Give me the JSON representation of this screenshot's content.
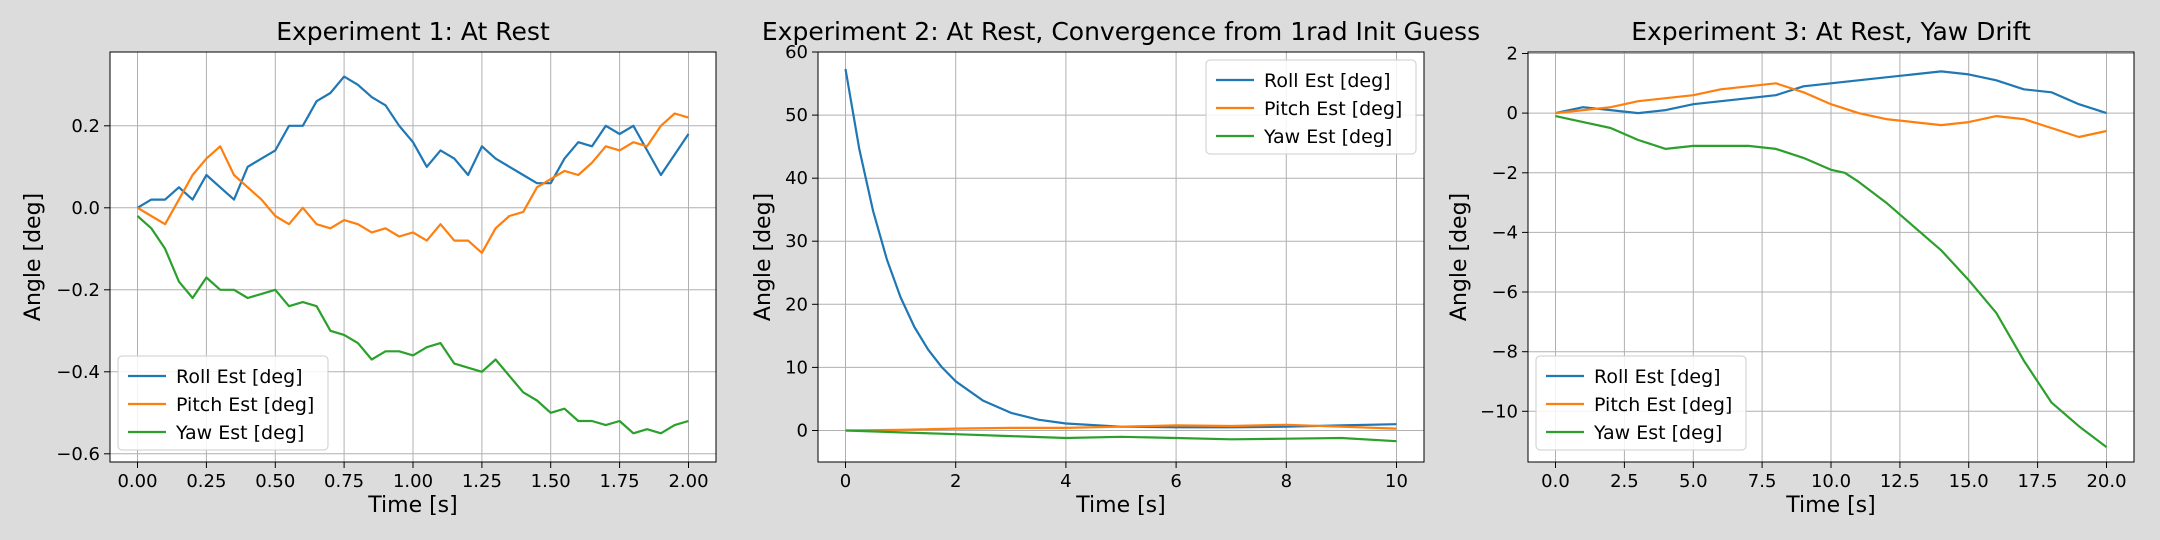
{
  "figure": {
    "background": "#dcdcdc"
  },
  "series_colors": {
    "Roll Est [deg]": "#1f77b4",
    "Pitch Est [deg]": "#ff7f0e",
    "Yaw Est [deg]": "#2ca02c"
  },
  "chart_data": [
    {
      "type": "line",
      "title": "Experiment 1: At Rest",
      "xlabel": "Time [s]",
      "ylabel": "Angle [deg]",
      "xlim": [
        -0.1,
        2.1
      ],
      "ylim": [
        -0.62,
        0.38
      ],
      "xticks": [
        0.0,
        0.25,
        0.5,
        0.75,
        1.0,
        1.25,
        1.5,
        1.75,
        2.0
      ],
      "xtick_labels": [
        "0.00",
        "0.25",
        "0.50",
        "0.75",
        "1.00",
        "1.25",
        "1.50",
        "1.75",
        "2.00"
      ],
      "yticks": [
        -0.6,
        -0.4,
        -0.2,
        0.0,
        0.2
      ],
      "ytick_labels": [
        "−0.6",
        "−0.4",
        "−0.2",
        "0.0",
        "0.2"
      ],
      "grid": true,
      "legend": "lower-left",
      "series": [
        {
          "name": "Roll Est [deg]",
          "color": "#1f77b4",
          "x": [
            0.0,
            0.05,
            0.1,
            0.15,
            0.2,
            0.25,
            0.3,
            0.35,
            0.4,
            0.45,
            0.5,
            0.55,
            0.6,
            0.65,
            0.7,
            0.75,
            0.8,
            0.85,
            0.9,
            0.95,
            1.0,
            1.05,
            1.1,
            1.15,
            1.2,
            1.25,
            1.3,
            1.35,
            1.4,
            1.45,
            1.5,
            1.55,
            1.6,
            1.65,
            1.7,
            1.75,
            1.8,
            1.85,
            1.9,
            1.95,
            2.0
          ],
          "y": [
            0.0,
            0.02,
            0.02,
            0.05,
            0.02,
            0.08,
            0.05,
            0.02,
            0.1,
            0.12,
            0.14,
            0.2,
            0.2,
            0.26,
            0.28,
            0.32,
            0.3,
            0.27,
            0.25,
            0.2,
            0.16,
            0.1,
            0.14,
            0.12,
            0.08,
            0.15,
            0.12,
            0.1,
            0.08,
            0.06,
            0.06,
            0.12,
            0.16,
            0.15,
            0.2,
            0.18,
            0.2,
            0.14,
            0.08,
            0.13,
            0.18
          ]
        },
        {
          "name": "Pitch Est [deg]",
          "color": "#ff7f0e",
          "x": [
            0.0,
            0.05,
            0.1,
            0.15,
            0.2,
            0.25,
            0.3,
            0.35,
            0.4,
            0.45,
            0.5,
            0.55,
            0.6,
            0.65,
            0.7,
            0.75,
            0.8,
            0.85,
            0.9,
            0.95,
            1.0,
            1.05,
            1.1,
            1.15,
            1.2,
            1.25,
            1.3,
            1.35,
            1.4,
            1.45,
            1.5,
            1.55,
            1.6,
            1.65,
            1.7,
            1.75,
            1.8,
            1.85,
            1.9,
            1.95,
            2.0
          ],
          "y": [
            0.0,
            -0.02,
            -0.04,
            0.02,
            0.08,
            0.12,
            0.15,
            0.08,
            0.05,
            0.02,
            -0.02,
            -0.04,
            0.0,
            -0.04,
            -0.05,
            -0.03,
            -0.04,
            -0.06,
            -0.05,
            -0.07,
            -0.06,
            -0.08,
            -0.04,
            -0.08,
            -0.08,
            -0.11,
            -0.05,
            -0.02,
            -0.01,
            0.05,
            0.07,
            0.09,
            0.08,
            0.11,
            0.15,
            0.14,
            0.16,
            0.15,
            0.2,
            0.23,
            0.22
          ]
        },
        {
          "name": "Yaw Est [deg]",
          "color": "#2ca02c",
          "x": [
            0.0,
            0.05,
            0.1,
            0.15,
            0.2,
            0.25,
            0.3,
            0.35,
            0.4,
            0.45,
            0.5,
            0.55,
            0.6,
            0.65,
            0.7,
            0.75,
            0.8,
            0.85,
            0.9,
            0.95,
            1.0,
            1.05,
            1.1,
            1.15,
            1.2,
            1.25,
            1.3,
            1.35,
            1.4,
            1.45,
            1.5,
            1.55,
            1.6,
            1.65,
            1.7,
            1.75,
            1.8,
            1.85,
            1.9,
            1.95,
            2.0
          ],
          "y": [
            -0.02,
            -0.05,
            -0.1,
            -0.18,
            -0.22,
            -0.17,
            -0.2,
            -0.2,
            -0.22,
            -0.21,
            -0.2,
            -0.24,
            -0.23,
            -0.24,
            -0.3,
            -0.31,
            -0.33,
            -0.37,
            -0.35,
            -0.35,
            -0.36,
            -0.34,
            -0.33,
            -0.38,
            -0.39,
            -0.4,
            -0.37,
            -0.41,
            -0.45,
            -0.47,
            -0.5,
            -0.49,
            -0.52,
            -0.52,
            -0.53,
            -0.52,
            -0.55,
            -0.54,
            -0.55,
            -0.53,
            -0.52
          ]
        }
      ]
    },
    {
      "type": "line",
      "title": "Experiment 2: At Rest, Convergence from 1rad Init Guess",
      "xlabel": "Time [s]",
      "ylabel": "Angle [deg]",
      "xlim": [
        -0.5,
        10.5
      ],
      "ylim": [
        -5,
        60
      ],
      "xticks": [
        0,
        2,
        4,
        6,
        8,
        10
      ],
      "xtick_labels": [
        "0",
        "2",
        "4",
        "6",
        "8",
        "10"
      ],
      "yticks": [
        0,
        10,
        20,
        30,
        40,
        50,
        60
      ],
      "ytick_labels": [
        "0",
        "10",
        "20",
        "30",
        "40",
        "50",
        "60"
      ],
      "grid": true,
      "legend": "top-right",
      "series": [
        {
          "name": "Roll Est [deg]",
          "color": "#1f77b4",
          "x": [
            0,
            0.25,
            0.5,
            0.75,
            1.0,
            1.25,
            1.5,
            1.75,
            2.0,
            2.5,
            3.0,
            3.5,
            4.0,
            5.0,
            6.0,
            7.0,
            8.0,
            9.0,
            10.0
          ],
          "y": [
            57.3,
            44.6,
            34.8,
            27.1,
            21.1,
            16.4,
            12.8,
            10.0,
            7.8,
            4.7,
            2.8,
            1.7,
            1.1,
            0.6,
            0.5,
            0.5,
            0.6,
            0.8,
            1.0
          ]
        },
        {
          "name": "Pitch Est [deg]",
          "color": "#ff7f0e",
          "x": [
            0,
            1,
            2,
            3,
            4,
            5,
            6,
            7,
            8,
            9,
            10
          ],
          "y": [
            0.0,
            0.1,
            0.3,
            0.4,
            0.4,
            0.6,
            0.8,
            0.7,
            0.9,
            0.6,
            0.3
          ]
        },
        {
          "name": "Yaw Est [deg]",
          "color": "#2ca02c",
          "x": [
            0,
            1,
            2,
            3,
            4,
            5,
            6,
            7,
            8,
            9,
            10
          ],
          "y": [
            0.0,
            -0.3,
            -0.6,
            -0.9,
            -1.2,
            -1.0,
            -1.2,
            -1.4,
            -1.3,
            -1.2,
            -1.7
          ]
        }
      ]
    },
    {
      "type": "line",
      "title": "Experiment 3: At Rest, Yaw Drift",
      "xlabel": "Time [s]",
      "ylabel": "Angle [deg]",
      "xlim": [
        -1.0,
        21.0
      ],
      "ylim": [
        -11.7,
        2.05
      ],
      "xticks": [
        0.0,
        2.5,
        5.0,
        7.5,
        10.0,
        12.5,
        15.0,
        17.5,
        20.0
      ],
      "xtick_labels": [
        "0.0",
        "2.5",
        "5.0",
        "7.5",
        "10.0",
        "12.5",
        "15.0",
        "17.5",
        "20.0"
      ],
      "yticks": [
        -10,
        -8,
        -6,
        -4,
        -2,
        0,
        2
      ],
      "ytick_labels": [
        "−10",
        "−8",
        "−6",
        "−4",
        "−2",
        "0",
        "2"
      ],
      "grid": true,
      "legend": "lower-left",
      "series": [
        {
          "name": "Roll Est [deg]",
          "color": "#1f77b4",
          "x": [
            0,
            1,
            2,
            3,
            4,
            5,
            6,
            7,
            8,
            9,
            10,
            11,
            12,
            13,
            14,
            15,
            16,
            17,
            18,
            19,
            20
          ],
          "y": [
            0.0,
            0.2,
            0.1,
            0.0,
            0.1,
            0.3,
            0.4,
            0.5,
            0.6,
            0.9,
            1.0,
            1.1,
            1.2,
            1.3,
            1.4,
            1.3,
            1.1,
            0.8,
            0.7,
            0.3,
            0.0
          ]
        },
        {
          "name": "Pitch Est [deg]",
          "color": "#ff7f0e",
          "x": [
            0,
            1,
            2,
            3,
            4,
            5,
            6,
            7,
            8,
            9,
            10,
            11,
            12,
            13,
            14,
            15,
            16,
            17,
            18,
            19,
            20
          ],
          "y": [
            0.0,
            0.1,
            0.2,
            0.4,
            0.5,
            0.6,
            0.8,
            0.9,
            1.0,
            0.7,
            0.3,
            0.0,
            -0.2,
            -0.3,
            -0.4,
            -0.3,
            -0.1,
            -0.2,
            -0.5,
            -0.8,
            -0.6
          ]
        },
        {
          "name": "Yaw Est [deg]",
          "color": "#2ca02c",
          "x": [
            0,
            1,
            2,
            3,
            4,
            5,
            6,
            7,
            8,
            9,
            10,
            10.5,
            11,
            12,
            13,
            14,
            15,
            16,
            17,
            18,
            19,
            20
          ],
          "y": [
            -0.1,
            -0.3,
            -0.5,
            -0.9,
            -1.2,
            -1.1,
            -1.1,
            -1.1,
            -1.2,
            -1.5,
            -1.9,
            -2.0,
            -2.3,
            -3.0,
            -3.8,
            -4.6,
            -5.6,
            -6.7,
            -8.3,
            -9.7,
            -10.5,
            -11.2
          ]
        }
      ]
    }
  ]
}
